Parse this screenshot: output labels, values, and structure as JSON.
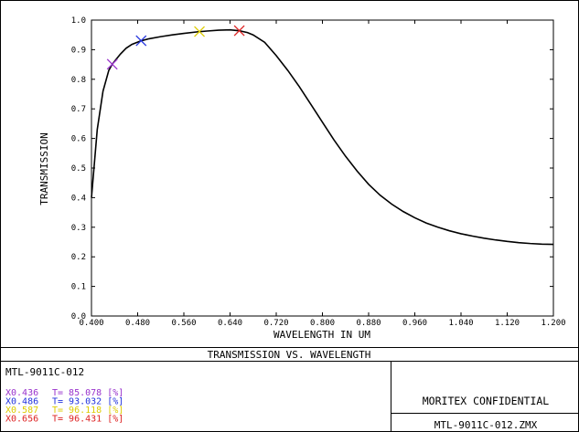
{
  "colors": {
    "line": "#000000",
    "marker_purple": "#9933cc",
    "marker_blue": "#2233dd",
    "marker_yellow": "#ddcc00",
    "marker_red": "#dd2222"
  },
  "chart_data": {
    "type": "line",
    "title": "TRANSMISSION VS. WAVELENGTH",
    "xlabel": "WAVELENGTH IN UM",
    "ylabel": "TRANSMISSION",
    "xlim": [
      0.4,
      1.2
    ],
    "ylim": [
      0.0,
      1.0
    ],
    "x_ticks": [
      "0.400",
      "0.480",
      "0.560",
      "0.640",
      "0.720",
      "0.800",
      "0.880",
      "0.960",
      "1.040",
      "1.120",
      "1.200"
    ],
    "y_ticks": [
      "0.0",
      "0.1",
      "0.2",
      "0.3",
      "0.4",
      "0.5",
      "0.6",
      "0.7",
      "0.8",
      "0.9",
      "1.0"
    ],
    "series": [
      {
        "x": [
          0.4,
          0.41,
          0.42,
          0.43,
          0.436,
          0.45,
          0.46,
          0.47,
          0.486,
          0.5,
          0.52,
          0.54,
          0.56,
          0.587,
          0.6,
          0.62,
          0.64,
          0.656,
          0.67,
          0.68,
          0.7,
          0.72,
          0.74,
          0.76,
          0.78,
          0.8,
          0.82,
          0.84,
          0.86,
          0.88,
          0.9,
          0.92,
          0.94,
          0.96,
          0.98,
          1.0,
          1.02,
          1.04,
          1.06,
          1.08,
          1.1,
          1.12,
          1.14,
          1.16,
          1.18,
          1.2
        ],
        "y": [
          0.4,
          0.63,
          0.76,
          0.83,
          0.851,
          0.885,
          0.905,
          0.918,
          0.93,
          0.937,
          0.944,
          0.95,
          0.955,
          0.961,
          0.963,
          0.966,
          0.967,
          0.964,
          0.958,
          0.95,
          0.925,
          0.88,
          0.83,
          0.775,
          0.715,
          0.655,
          0.595,
          0.54,
          0.49,
          0.445,
          0.408,
          0.378,
          0.353,
          0.332,
          0.314,
          0.3,
          0.288,
          0.278,
          0.27,
          0.263,
          0.257,
          0.252,
          0.248,
          0.245,
          0.243,
          0.242
        ]
      }
    ],
    "markers": [
      {
        "x": 0.436,
        "y": 0.85078,
        "label": "X0.436",
        "value": "T= 85.078 [%]",
        "color": "#9933cc"
      },
      {
        "x": 0.486,
        "y": 0.93032,
        "label": "X0.486",
        "value": "T= 93.032 [%]",
        "color": "#2233dd"
      },
      {
        "x": 0.587,
        "y": 0.96118,
        "label": "X0.587",
        "value": "T= 96.118 [%]",
        "color": "#ddcc00"
      },
      {
        "x": 0.656,
        "y": 0.96431,
        "label": "X0.656",
        "value": "T= 96.431 [%]",
        "color": "#dd2222"
      }
    ]
  },
  "footer": {
    "file_name": "MTL-9011C-012",
    "confidential": "MORITEX CONFIDENTIAL",
    "file_zmx": "MTL-9011C-012.ZMX"
  }
}
